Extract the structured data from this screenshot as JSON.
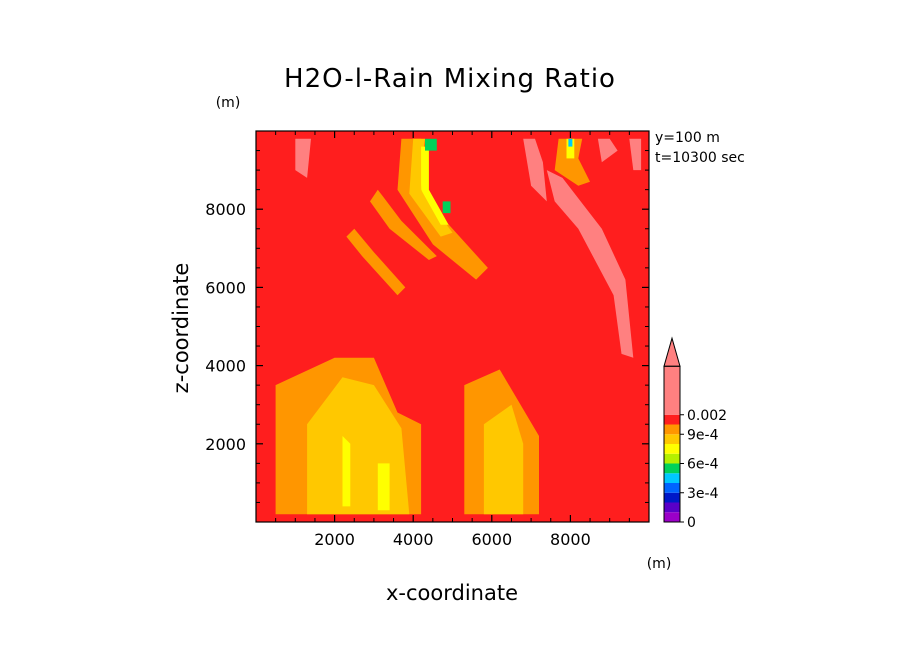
{
  "chart_data": {
    "type": "heatmap",
    "title": "H2O-l-Rain Mixing Ratio",
    "xlabel": "x-coordinate",
    "ylabel": "z-coordinate",
    "x_unit": "(m)",
    "y_unit": "(m)",
    "annotations": [
      "y=100 m",
      "t=10300 sec"
    ],
    "xlim": [
      0,
      10000
    ],
    "ylim": [
      0,
      10000
    ],
    "x_ticks": [
      2000,
      4000,
      6000,
      8000
    ],
    "y_ticks": [
      2000,
      4000,
      6000,
      8000
    ],
    "x_tick_labels": [
      "2000",
      "4000",
      "6000",
      "8000"
    ],
    "y_tick_labels": [
      "2000",
      "4000",
      "6000",
      "8000"
    ],
    "colorbar": {
      "levels": [
        0,
        0.0001,
        0.0002,
        0.0003,
        0.0004,
        0.0005,
        0.0006,
        0.0007,
        0.0008,
        0.0009,
        0.001,
        0.002
      ],
      "labels": [
        {
          "value": 0,
          "text": "0"
        },
        {
          "value": 0.0003,
          "text": "3e-4"
        },
        {
          "value": 0.0006,
          "text": "6e-4"
        },
        {
          "value": 0.0009,
          "text": "9e-4"
        },
        {
          "value": 0.002,
          "text": "0.002"
        }
      ],
      "colors": [
        "#9b00c8",
        "#5a00c8",
        "#0018c8",
        "#0064ff",
        "#00c8ff",
        "#00d25a",
        "#b4f000",
        "#ffff00",
        "#ffc800",
        "#ff9600",
        "#ff1e1e",
        "#ff8080"
      ],
      "extend": "max"
    },
    "background_level_color": "#ff1e1e",
    "regions": [
      {
        "level": "#ff9600",
        "points": [
          [
            500,
            200
          ],
          [
            500,
            3500
          ],
          [
            2000,
            4200
          ],
          [
            3000,
            4200
          ],
          [
            3600,
            2800
          ],
          [
            4200,
            2500
          ],
          [
            4200,
            200
          ]
        ]
      },
      {
        "level": "#ffc800",
        "points": [
          [
            1300,
            200
          ],
          [
            1300,
            2500
          ],
          [
            2200,
            3700
          ],
          [
            3000,
            3500
          ],
          [
            3700,
            2400
          ],
          [
            3900,
            200
          ]
        ]
      },
      {
        "level": "#ffff00",
        "points": [
          [
            2200,
            400
          ],
          [
            2200,
            2200
          ],
          [
            2400,
            2000
          ],
          [
            2400,
            400
          ]
        ]
      },
      {
        "level": "#ffff00",
        "points": [
          [
            3100,
            300
          ],
          [
            3100,
            1500
          ],
          [
            3400,
            1500
          ],
          [
            3400,
            300
          ]
        ]
      },
      {
        "level": "#ff9600",
        "points": [
          [
            5300,
            200
          ],
          [
            5300,
            3500
          ],
          [
            6200,
            3900
          ],
          [
            7200,
            2200
          ],
          [
            7200,
            200
          ]
        ]
      },
      {
        "level": "#ffc800",
        "points": [
          [
            5800,
            200
          ],
          [
            5800,
            2500
          ],
          [
            6500,
            3000
          ],
          [
            6800,
            2000
          ],
          [
            6800,
            200
          ]
        ]
      },
      {
        "level": "#ff9600",
        "points": [
          [
            4200,
            9800
          ],
          [
            4100,
            8500
          ],
          [
            5000,
            7500
          ],
          [
            5900,
            6500
          ],
          [
            5600,
            6200
          ],
          [
            4500,
            7100
          ],
          [
            3600,
            8500
          ],
          [
            3700,
            9800
          ]
        ]
      },
      {
        "level": "#ffc800",
        "points": [
          [
            4300,
            9800
          ],
          [
            4200,
            8500
          ],
          [
            5000,
            7400
          ],
          [
            4700,
            7300
          ],
          [
            3900,
            8400
          ],
          [
            4000,
            9800
          ]
        ]
      },
      {
        "level": "#ffff00",
        "points": [
          [
            4400,
            9600
          ],
          [
            4400,
            8500
          ],
          [
            4900,
            7600
          ],
          [
            4700,
            7600
          ],
          [
            4200,
            8500
          ],
          [
            4200,
            9600
          ]
        ]
      },
      {
        "level": "#00d25a",
        "points": [
          [
            4300,
            9800
          ],
          [
            4300,
            9500
          ],
          [
            4600,
            9500
          ],
          [
            4600,
            9800
          ]
        ]
      },
      {
        "level": "#00d25a",
        "points": [
          [
            4750,
            8200
          ],
          [
            4750,
            7900
          ],
          [
            4950,
            7900
          ],
          [
            4950,
            8200
          ]
        ]
      },
      {
        "level": "#ff9600",
        "points": [
          [
            2900,
            8200
          ],
          [
            3400,
            7500
          ],
          [
            4400,
            6700
          ],
          [
            4600,
            6800
          ],
          [
            3700,
            7700
          ],
          [
            3100,
            8500
          ]
        ]
      },
      {
        "level": "#ff9600",
        "points": [
          [
            2300,
            7300
          ],
          [
            2700,
            6800
          ],
          [
            3600,
            5800
          ],
          [
            3800,
            6000
          ],
          [
            3000,
            6900
          ],
          [
            2500,
            7500
          ]
        ]
      },
      {
        "level": "#ff9600",
        "points": [
          [
            7700,
            9800
          ],
          [
            7600,
            9000
          ],
          [
            8200,
            8600
          ],
          [
            8500,
            8700
          ],
          [
            8200,
            9300
          ],
          [
            8300,
            9800
          ]
        ]
      },
      {
        "level": "#ffff00",
        "points": [
          [
            7900,
            9800
          ],
          [
            7900,
            9300
          ],
          [
            8100,
            9300
          ],
          [
            8100,
            9800
          ]
        ]
      },
      {
        "level": "#00c8ff",
        "points": [
          [
            7950,
            9800
          ],
          [
            7950,
            9600
          ],
          [
            8050,
            9600
          ],
          [
            8050,
            9800
          ]
        ]
      },
      {
        "level": "#ff8080",
        "points": [
          [
            9100,
            5800
          ],
          [
            8200,
            7500
          ],
          [
            7600,
            8200
          ],
          [
            7400,
            9000
          ],
          [
            7800,
            8800
          ],
          [
            8800,
            7500
          ],
          [
            9400,
            6200
          ],
          [
            9600,
            4200
          ],
          [
            9300,
            4300
          ]
        ]
      },
      {
        "level": "#ff8080",
        "points": [
          [
            6800,
            9800
          ],
          [
            7000,
            8600
          ],
          [
            7400,
            8200
          ],
          [
            7300,
            9200
          ],
          [
            7100,
            9800
          ]
        ]
      },
      {
        "level": "#ff8080",
        "points": [
          [
            1000,
            9800
          ],
          [
            1000,
            9000
          ],
          [
            1300,
            8800
          ],
          [
            1400,
            9800
          ]
        ]
      },
      {
        "level": "#ff8080",
        "points": [
          [
            9500,
            9800
          ],
          [
            9600,
            9000
          ],
          [
            9800,
            9000
          ],
          [
            9800,
            9800
          ]
        ]
      },
      {
        "level": "#ff8080",
        "points": [
          [
            8700,
            9800
          ],
          [
            8800,
            9200
          ],
          [
            9200,
            9500
          ],
          [
            9000,
            9800
          ]
        ]
      }
    ]
  }
}
